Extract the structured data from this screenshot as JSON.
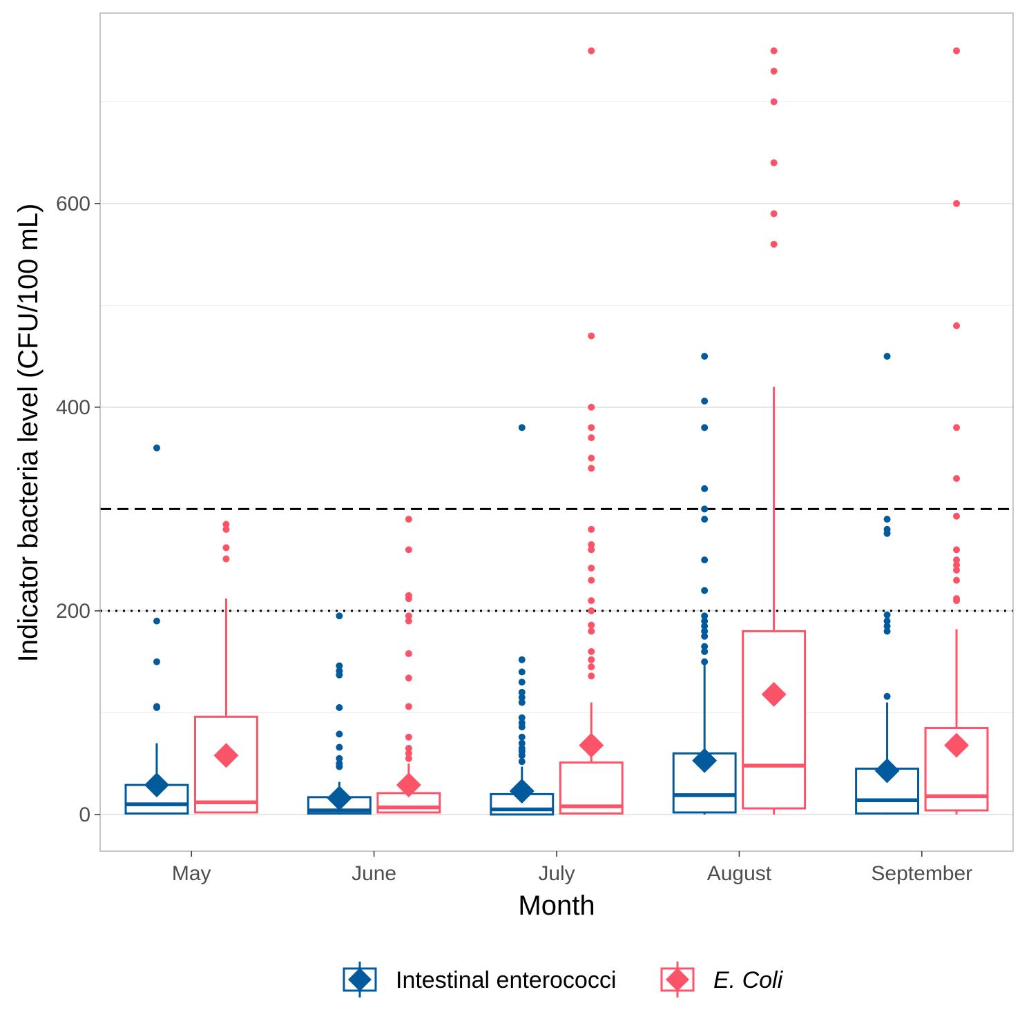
{
  "chart_data": {
    "type": "box",
    "xlabel": "Month",
    "ylabel": "Indicator bacteria level (CFU/100 mL)",
    "ylim": [
      -36,
      787
    ],
    "y_ticks": [
      0,
      200,
      400,
      600
    ],
    "y_minor_gridlines": [
      100,
      300,
      500,
      700
    ],
    "grid": true,
    "legend_position": "bottom",
    "categories": [
      "May",
      "June",
      "July",
      "August",
      "September"
    ],
    "reference_lines": [
      {
        "value": 300,
        "style": "dashed"
      },
      {
        "value": 200,
        "style": "dotted"
      }
    ],
    "series": [
      {
        "name": "Intestinal enterococci",
        "italic": false,
        "color": "#005a9c",
        "boxes": [
          {
            "min": 0,
            "q1": 1,
            "median": 10,
            "q3": 29,
            "max": 70,
            "mean": 29,
            "outliers": [
              360,
              190,
              150,
              106,
              105
            ]
          },
          {
            "min": 0,
            "q1": 1,
            "median": 4,
            "q3": 17,
            "max": 32,
            "mean": 16,
            "outliers": [
              195,
              146,
              141,
              137,
              105,
              79,
              66,
              55,
              50,
              47
            ]
          },
          {
            "min": 0,
            "q1": 0,
            "median": 5,
            "q3": 20,
            "max": 47,
            "mean": 23,
            "outliers": [
              380,
              152,
              140,
              130,
              120,
              115,
              110,
              95,
              90,
              86,
              76,
              70,
              65,
              62,
              58,
              52
            ]
          },
          {
            "min": 0,
            "q1": 2,
            "median": 19,
            "q3": 60,
            "max": 150,
            "mean": 53,
            "outliers": [
              450,
              406,
              380,
              320,
              300,
              290,
              250,
              220,
              195,
              190,
              185,
              180,
              175,
              165,
              160,
              150
            ]
          },
          {
            "min": 0,
            "q1": 1,
            "median": 14,
            "q3": 45,
            "max": 110,
            "mean": 43,
            "outliers": [
              450,
              290,
              280,
              276,
              196,
              190,
              185,
              180,
              116
            ]
          }
        ]
      },
      {
        "name": "E. Coli",
        "italic": true,
        "color": "#fb5468",
        "boxes": [
          {
            "min": 1,
            "q1": 2,
            "median": 12,
            "q3": 96,
            "max": 212,
            "mean": 58,
            "outliers": [
              285,
              280,
              262,
              251
            ]
          },
          {
            "min": 1,
            "q1": 2,
            "median": 7,
            "q3": 21,
            "max": 50,
            "mean": 29,
            "outliers": [
              290,
              260,
              215,
              212,
              195,
              190,
              158,
              134,
              106,
              76,
              65,
              60,
              55
            ]
          },
          {
            "min": 1,
            "q1": 1,
            "median": 8,
            "q3": 51,
            "max": 110,
            "mean": 68,
            "outliers": [
              750,
              470,
              400,
              380,
              370,
              350,
              340,
              280,
              265,
              260,
              242,
              230,
              210,
              200,
              186,
              180,
              160,
              152,
              145,
              136
            ]
          },
          {
            "min": 0,
            "q1": 6,
            "median": 48,
            "q3": 180,
            "max": 420,
            "mean": 118,
            "outliers": [
              750,
              730,
              700,
              640,
              590,
              560
            ]
          },
          {
            "min": 0,
            "q1": 4,
            "median": 18,
            "q3": 85,
            "max": 182,
            "mean": 68,
            "outliers": [
              750,
              600,
              480,
              380,
              330,
              293,
              260,
              250,
              245,
              240,
              230,
              212,
              210
            ]
          }
        ]
      }
    ]
  }
}
